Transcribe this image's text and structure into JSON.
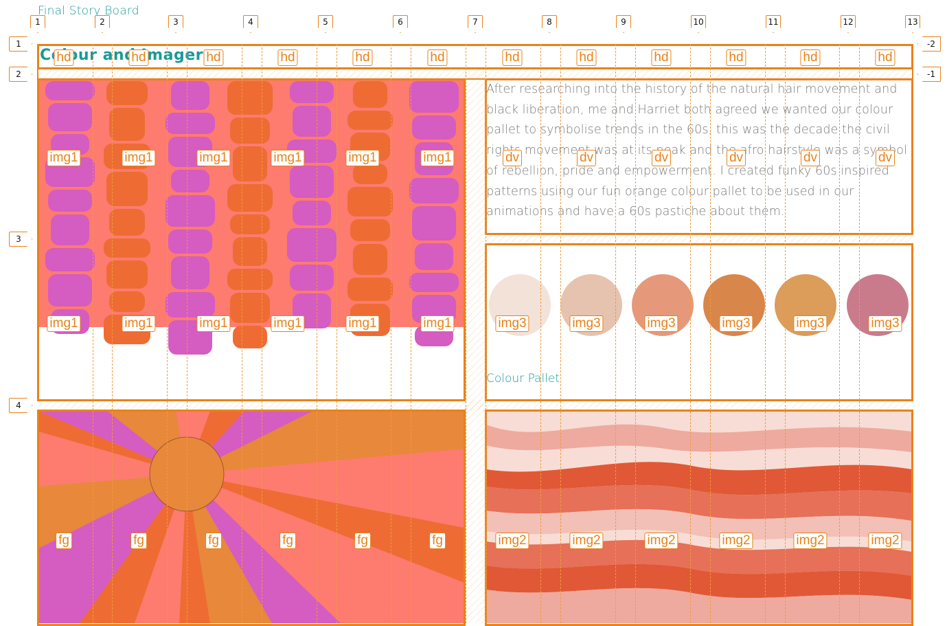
{
  "title": "Final Story Board",
  "heading": "Colour and Imagery",
  "description": "After researching into the history of the natural hair movement and black liberation, me and Harriet both agreed we wanted our colour pallet to symbolise trends in the 60s, this was the decade the civil rights movement was at its peak and the afro hairstyle was a symbol of rebellion, pride and empowerment. I created funky 60s inspired patterns using our fun orange colour pallet to be used in our animations and have a 60s pastiche about them.",
  "pallet_label": "Colour Pallet",
  "column_markers": [
    "1",
    "2",
    "3",
    "4",
    "5",
    "6",
    "7",
    "8",
    "9",
    "10",
    "11",
    "12",
    "13"
  ],
  "row_markers_left": [
    "1",
    "2",
    "3",
    "4"
  ],
  "row_markers_right": [
    "-2",
    "-1"
  ],
  "tags": {
    "hd": "hd",
    "img1": "img1",
    "dv": "dv",
    "img3": "img3",
    "fg": "fg",
    "img2": "img2"
  },
  "colors": {
    "accent": "#e8821a",
    "teal": "#1a9a96",
    "salmon": "#fd7b6f",
    "orange": "#ee6c33",
    "magenta": "#d55cc0",
    "swatches": [
      "#f3e2d8",
      "#e6c3ae",
      "#e6987a",
      "#d9864b",
      "#dc9c5a",
      "#c97b8c"
    ]
  },
  "icons": [
    "col-marker-icon",
    "row-marker-icon"
  ]
}
